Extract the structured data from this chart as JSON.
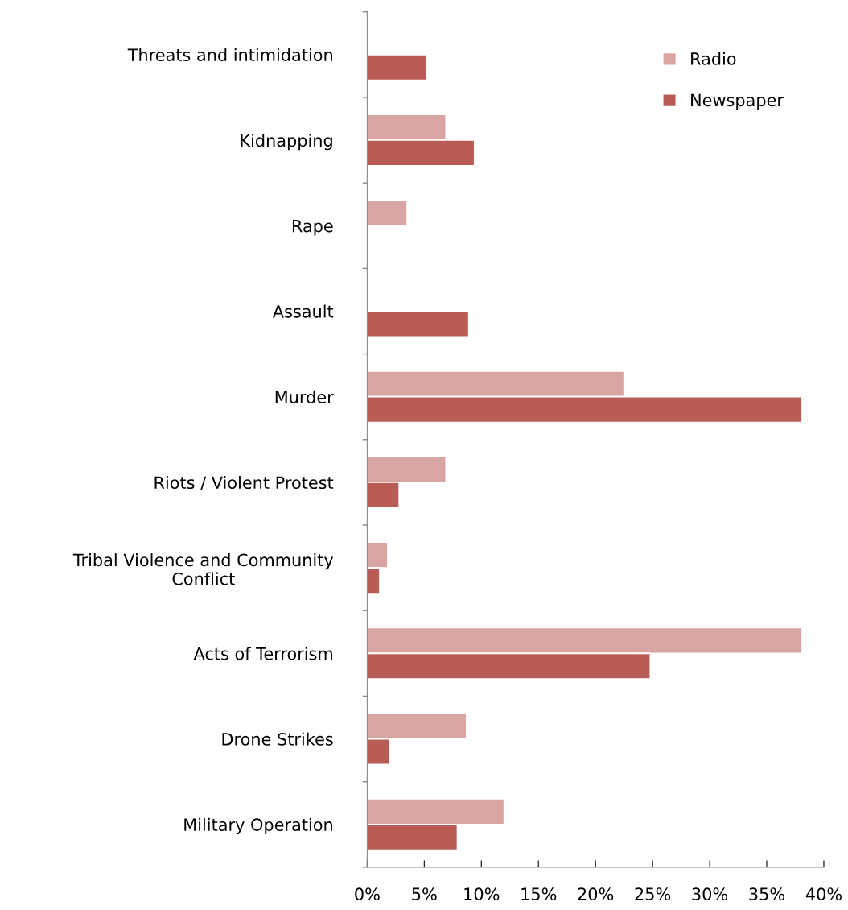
{
  "chart_data": {
    "type": "bar",
    "orientation": "horizontal",
    "categories": [
      "Threats and intimidation",
      "Kidnapping",
      "Rape",
      "Assault",
      "Murder",
      "Riots / Violent Protest",
      "Tribal Violence and Community\nConflict",
      "Acts of Terrorism",
      "Drone Strikes",
      "Military Operation"
    ],
    "series": [
      {
        "name": "Radio",
        "color": "#d9a5a3",
        "values": [
          null,
          6.9,
          3.5,
          null,
          22.5,
          6.9,
          1.8,
          38.1,
          8.7,
          12.0
        ]
      },
      {
        "name": "Newspaper",
        "color": "#b85c55",
        "values": [
          5.2,
          9.4,
          null,
          8.9,
          38.1,
          2.8,
          1.1,
          24.8,
          2.0,
          7.9
        ]
      }
    ],
    "xlim": [
      0,
      40
    ],
    "xticks": [
      {
        "value": 0,
        "label": "0%"
      },
      {
        "value": 5,
        "label": "5%"
      },
      {
        "value": 10,
        "label": "10%"
      },
      {
        "value": 15,
        "label": "15%"
      },
      {
        "value": 20,
        "label": "20%"
      },
      {
        "value": 25,
        "label": "25%"
      },
      {
        "value": 30,
        "label": "30%"
      },
      {
        "value": 35,
        "label": "35%"
      },
      {
        "value": 40,
        "label": "40%"
      }
    ],
    "grid": false,
    "legend": "top right"
  }
}
